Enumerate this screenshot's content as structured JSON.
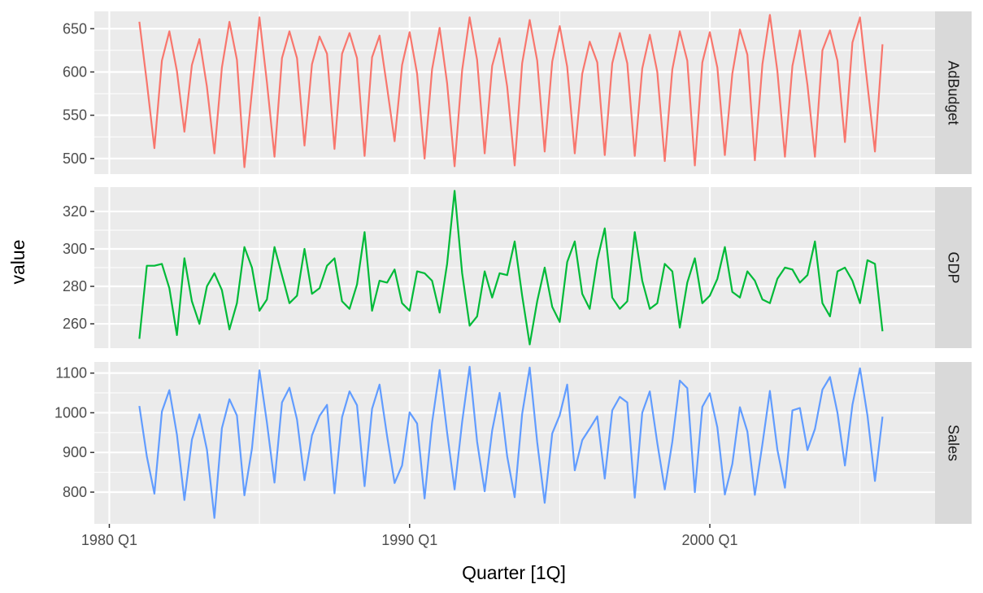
{
  "chart_data": {
    "type": "line",
    "layout": "faceted-rows",
    "xlabel": "Quarter [1Q]",
    "ylabel": "value",
    "x_axis": {
      "unit": "quarter",
      "first_period": "1981 Q1",
      "last_period": "2005 Q4",
      "range": [
        "1979 Q3",
        "2007 Q3"
      ],
      "ticks": [
        "1980 Q1",
        "1990 Q1",
        "2000 Q1"
      ]
    },
    "grid": true,
    "legend": "none",
    "facets": [
      {
        "name": "AdBudget",
        "color": "#F8766D",
        "ylim": [
          482,
          670
        ],
        "yticks": [
          500,
          550,
          600,
          650
        ],
        "values": [
          658,
          588,
          512,
          613,
          647,
          601,
          531,
          608,
          638,
          583,
          506,
          605,
          658,
          614,
          490,
          578,
          663,
          588,
          502,
          616,
          647,
          616,
          515,
          609,
          641,
          621,
          511,
          621,
          645,
          616,
          503,
          617,
          642,
          582,
          520,
          608,
          646,
          598,
          500,
          603,
          651,
          587,
          491,
          602,
          663,
          614,
          506,
          607,
          639,
          583,
          492,
          610,
          660,
          613,
          508,
          612,
          653,
          606,
          506,
          598,
          635,
          611,
          504,
          610,
          645,
          610,
          503,
          604,
          643,
          600,
          497,
          603,
          647,
          613,
          492,
          611,
          646,
          605,
          504,
          598,
          649,
          620,
          498,
          609,
          666,
          601,
          502,
          607,
          648,
          585,
          502,
          625,
          648,
          613,
          519,
          634,
          663,
          585,
          508,
          632
        ]
      },
      {
        "name": "GDP",
        "color": "#00BA38",
        "ylim": [
          247,
          333
        ],
        "yticks": [
          260,
          280,
          300,
          320
        ],
        "values": [
          252,
          291,
          291,
          292,
          279,
          254,
          295,
          272,
          260,
          280,
          287,
          278,
          257,
          271,
          301,
          290,
          267,
          273,
          301,
          286,
          271,
          275,
          300,
          276,
          279,
          291,
          295,
          272,
          268,
          281,
          309,
          267,
          283,
          282,
          289,
          271,
          267,
          288,
          287,
          283,
          266,
          292,
          331,
          287,
          259,
          264,
          288,
          274,
          287,
          286,
          304,
          275,
          249,
          272,
          290,
          269,
          261,
          293,
          304,
          276,
          268,
          294,
          311,
          274,
          268,
          272,
          309,
          283,
          268,
          271,
          292,
          288,
          258,
          282,
          295,
          271,
          275,
          284,
          301,
          277,
          274,
          288,
          283,
          273,
          271,
          284,
          290,
          289,
          282,
          286,
          304,
          271,
          264,
          288,
          290,
          283,
          271,
          294,
          292,
          256
        ]
      },
      {
        "name": "Sales",
        "color": "#619CFF",
        "ylim": [
          720,
          1128
        ],
        "yticks": [
          800,
          900,
          1000,
          1100
        ],
        "values": [
          1017,
          890,
          796,
          1003,
          1057,
          945,
          780,
          932,
          996,
          907,
          735,
          961,
          1034,
          993,
          792,
          910,
          1107,
          975,
          824,
          1026,
          1063,
          983,
          830,
          943,
          992,
          1020,
          797,
          989,
          1054,
          1019,
          815,
          1010,
          1071,
          941,
          823,
          867,
          1001,
          973,
          784,
          975,
          1108,
          950,
          807,
          977,
          1116,
          927,
          802,
          955,
          1050,
          890,
          787,
          997,
          1114,
          926,
          773,
          948,
          994,
          1071,
          855,
          931,
          960,
          991,
          834,
          1006,
          1040,
          1026,
          786,
          1000,
          1054,
          924,
          807,
          927,
          1081,
          1062,
          800,
          1015,
          1049,
          963,
          794,
          871,
          1014,
          953,
          793,
          921,
          1055,
          907,
          811,
          1006,
          1012,
          906,
          959,
          1058,
          1090,
          1000,
          867,
          1020,
          1112,
          993,
          828,
          990
        ]
      }
    ]
  }
}
